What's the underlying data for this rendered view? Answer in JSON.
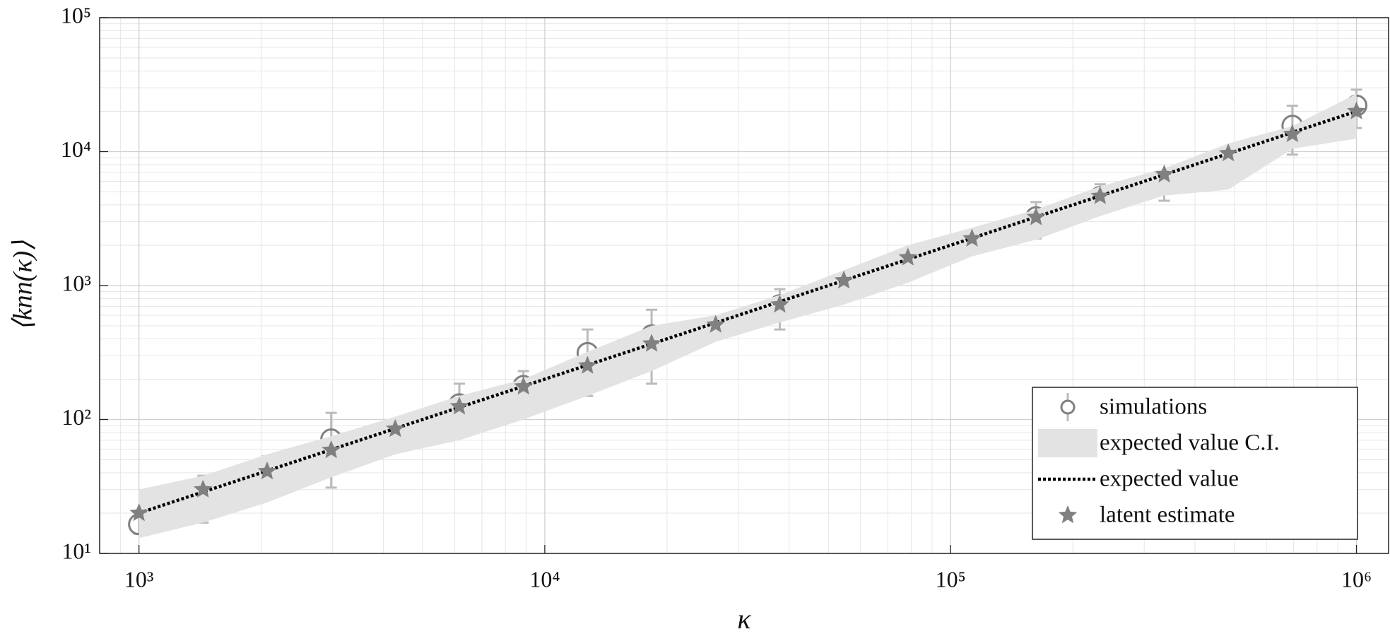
{
  "chart_data": {
    "type": "scatter",
    "xlabel": "κ",
    "ylabel": "⟨knn(κ)⟩",
    "log_x": true,
    "log_y": true,
    "grid": true,
    "legend": "lower right",
    "x": [
      1000,
      1438,
      2069,
      2976,
      4281,
      6158,
      8859,
      12743,
      18330,
      26367,
      37927,
      54556,
      78476,
      112884,
      162378,
      233572,
      335982,
      483293,
      695193,
      1000000
    ],
    "xlim": [
      800,
      1200000
    ],
    "ylim": [
      10,
      100000
    ],
    "xticks": [
      {
        "value": 1000,
        "label": "10³"
      },
      {
        "value": 10000,
        "label": "10⁴"
      },
      {
        "value": 100000,
        "label": "10⁵"
      },
      {
        "value": 1000000,
        "label": "10⁶"
      }
    ],
    "yticks": [
      {
        "value": 10,
        "label": "10¹"
      },
      {
        "value": 100,
        "label": "10²"
      },
      {
        "value": 1000,
        "label": "10³"
      },
      {
        "value": 10000,
        "label": "10⁴"
      },
      {
        "value": 100000,
        "label": "10⁵"
      }
    ],
    "x_minor_ticks": [
      900,
      2000,
      3000,
      4000,
      5000,
      6000,
      7000,
      8000,
      9000,
      20000,
      30000,
      40000,
      50000,
      60000,
      70000,
      80000,
      90000,
      200000,
      300000,
      400000,
      500000,
      600000,
      700000,
      800000,
      900000
    ],
    "y_minor_ticks": [
      20,
      30,
      40,
      50,
      60,
      70,
      80,
      90,
      200,
      300,
      400,
      500,
      600,
      700,
      800,
      900,
      2000,
      3000,
      4000,
      5000,
      6000,
      7000,
      8000,
      9000,
      20000,
      30000,
      40000,
      50000,
      60000,
      70000,
      80000,
      90000
    ],
    "series": [
      {
        "name": "simulations",
        "kind": "errorbar",
        "color": "#808080",
        "error_color": "#bbbbbb",
        "values": [
          16.5,
          27.8,
          40,
          71,
          71,
          130,
          178,
          314,
          425,
          473,
          714,
          985,
          1443,
          2080,
          3240,
          4590,
          5950,
          8340,
          15600,
          22100
        ],
        "err_low": [
          14,
          17,
          26,
          31,
          62,
          75,
          125,
          150,
          185,
          420,
          470,
          820,
          1120,
          1800,
          2250,
          3500,
          4300,
          7000,
          9500,
          15000
        ],
        "err_high": [
          19,
          38,
          53,
          112,
          80,
          185,
          230,
          470,
          660,
          530,
          940,
          1150,
          1700,
          2400,
          4200,
          5700,
          7100,
          9700,
          22000,
          29000
        ]
      },
      {
        "name": "expected value C.I.",
        "kind": "band",
        "color": "#e3e3e3",
        "lower": [
          13,
          17,
          24,
          37,
          55,
          70,
          100,
          150,
          230,
          380,
          530,
          720,
          1050,
          1650,
          2200,
          3300,
          4700,
          5200,
          10500,
          12500
        ],
        "upper": [
          30,
          38,
          55,
          75,
          105,
          150,
          200,
          320,
          500,
          600,
          850,
          1300,
          2000,
          2700,
          3700,
          5500,
          7500,
          11500,
          15500,
          27000
        ]
      },
      {
        "name": "expected value",
        "kind": "line",
        "color": "#000000",
        "values": [
          20,
          28.76,
          41.38,
          59.52,
          85.62,
          123.2,
          177.2,
          254.9,
          366.6,
          527.3,
          758.5,
          1091,
          1570,
          2258,
          3248,
          4671,
          6720,
          9666,
          13904,
          20000
        ]
      },
      {
        "name": "latent estimate",
        "kind": "star",
        "color": "#808080",
        "values": [
          20,
          30,
          41,
          59,
          85,
          125,
          176,
          252,
          368,
          510,
          720,
          1090,
          1620,
          2240,
          3240,
          4650,
          6750,
          9700,
          13500,
          20000
        ]
      }
    ]
  }
}
